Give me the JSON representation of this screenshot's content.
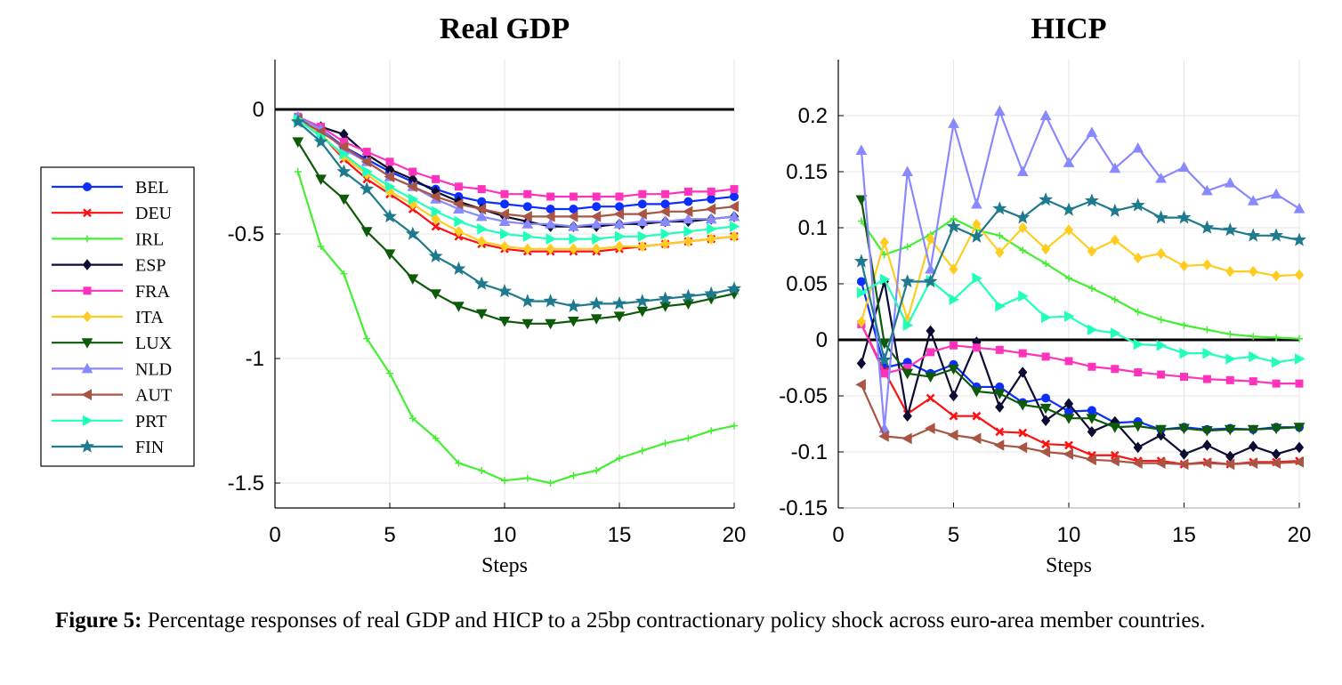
{
  "legend": {
    "countries": [
      "BEL",
      "DEU",
      "IRL",
      "ESP",
      "FRA",
      "ITA",
      "LUX",
      "NLD",
      "AUT",
      "PRT",
      "FIN"
    ],
    "colors": [
      "#0a2fff",
      "#ff1010",
      "#44ee33",
      "#0b0b33",
      "#ff33bb",
      "#ffcc22",
      "#0d5a08",
      "#8888ff",
      "#aa5544",
      "#22ffbb",
      "#1e7a8c"
    ],
    "markers": [
      "circle",
      "cross",
      "plus",
      "diamond",
      "square",
      "diamond",
      "triangle-down",
      "triangle-up",
      "triangle-left",
      "triangle-right",
      "star"
    ]
  },
  "chart_data": [
    {
      "type": "line",
      "title": "Real GDP",
      "xlabel": "Steps",
      "ylabel": "",
      "xlim": [
        0,
        20
      ],
      "ylim": [
        -1.6,
        0.2
      ],
      "xticks": [
        "0",
        "5",
        "10",
        "15",
        "20"
      ],
      "yticks": [
        "0",
        "-0.5",
        "-1",
        "-1.5"
      ],
      "x": [
        1,
        2,
        3,
        4,
        5,
        6,
        7,
        8,
        9,
        10,
        11,
        12,
        13,
        14,
        15,
        16,
        17,
        18,
        19,
        20
      ],
      "series": [
        {
          "name": "BEL",
          "values": [
            -0.03,
            -0.08,
            -0.15,
            -0.2,
            -0.25,
            -0.29,
            -0.32,
            -0.35,
            -0.37,
            -0.38,
            -0.39,
            -0.4,
            -0.4,
            -0.39,
            -0.39,
            -0.38,
            -0.38,
            -0.37,
            -0.36,
            -0.35
          ]
        },
        {
          "name": "DEU",
          "values": [
            -0.04,
            -0.1,
            -0.2,
            -0.28,
            -0.34,
            -0.4,
            -0.47,
            -0.51,
            -0.54,
            -0.56,
            -0.57,
            -0.57,
            -0.57,
            -0.57,
            -0.56,
            -0.55,
            -0.54,
            -0.53,
            -0.52,
            -0.51
          ]
        },
        {
          "name": "IRL",
          "values": [
            -0.25,
            -0.55,
            -0.66,
            -0.92,
            -1.06,
            -1.24,
            -1.32,
            -1.42,
            -1.45,
            -1.49,
            -1.48,
            -1.5,
            -1.47,
            -1.45,
            -1.4,
            -1.37,
            -1.34,
            -1.32,
            -1.29,
            -1.27
          ]
        },
        {
          "name": "ESP",
          "values": [
            -0.04,
            -0.07,
            -0.1,
            -0.18,
            -0.24,
            -0.28,
            -0.33,
            -0.37,
            -0.4,
            -0.43,
            -0.45,
            -0.47,
            -0.47,
            -0.47,
            -0.46,
            -0.46,
            -0.45,
            -0.45,
            -0.44,
            -0.43
          ]
        },
        {
          "name": "FRA",
          "values": [
            -0.03,
            -0.07,
            -0.13,
            -0.17,
            -0.21,
            -0.25,
            -0.28,
            -0.31,
            -0.32,
            -0.34,
            -0.34,
            -0.35,
            -0.35,
            -0.35,
            -0.35,
            -0.34,
            -0.34,
            -0.33,
            -0.33,
            -0.32
          ]
        },
        {
          "name": "ITA",
          "values": [
            -0.04,
            -0.1,
            -0.19,
            -0.26,
            -0.33,
            -0.38,
            -0.44,
            -0.49,
            -0.53,
            -0.55,
            -0.56,
            -0.56,
            -0.56,
            -0.56,
            -0.55,
            -0.55,
            -0.54,
            -0.53,
            -0.52,
            -0.51
          ]
        },
        {
          "name": "LUX",
          "values": [
            -0.13,
            -0.28,
            -0.36,
            -0.49,
            -0.58,
            -0.68,
            -0.74,
            -0.79,
            -0.82,
            -0.85,
            -0.86,
            -0.86,
            -0.85,
            -0.84,
            -0.83,
            -0.81,
            -0.79,
            -0.78,
            -0.76,
            -0.74
          ]
        },
        {
          "name": "NLD",
          "values": [
            -0.03,
            -0.08,
            -0.16,
            -0.21,
            -0.27,
            -0.31,
            -0.36,
            -0.4,
            -0.43,
            -0.45,
            -0.46,
            -0.46,
            -0.47,
            -0.46,
            -0.46,
            -0.45,
            -0.45,
            -0.44,
            -0.44,
            -0.43
          ]
        },
        {
          "name": "AUT",
          "values": [
            -0.04,
            -0.09,
            -0.15,
            -0.21,
            -0.27,
            -0.31,
            -0.35,
            -0.38,
            -0.4,
            -0.42,
            -0.43,
            -0.43,
            -0.43,
            -0.43,
            -0.42,
            -0.42,
            -0.41,
            -0.41,
            -0.4,
            -0.39
          ]
        },
        {
          "name": "PRT",
          "values": [
            -0.04,
            -0.11,
            -0.18,
            -0.25,
            -0.31,
            -0.36,
            -0.41,
            -0.45,
            -0.48,
            -0.5,
            -0.51,
            -0.52,
            -0.52,
            -0.52,
            -0.51,
            -0.51,
            -0.5,
            -0.49,
            -0.48,
            -0.47
          ]
        },
        {
          "name": "FIN",
          "values": [
            -0.05,
            -0.13,
            -0.25,
            -0.32,
            -0.43,
            -0.5,
            -0.59,
            -0.64,
            -0.7,
            -0.73,
            -0.77,
            -0.77,
            -0.79,
            -0.78,
            -0.78,
            -0.77,
            -0.76,
            -0.75,
            -0.74,
            -0.72
          ]
        }
      ]
    },
    {
      "type": "line",
      "title": "HICP",
      "xlabel": "Steps",
      "ylabel": "",
      "xlim": [
        0,
        20
      ],
      "ylim": [
        -0.15,
        0.25
      ],
      "xticks": [
        "0",
        "5",
        "10",
        "15",
        "20"
      ],
      "yticks": [
        "0.2",
        "0.15",
        "0.1",
        "0.05",
        "0",
        "-0.05",
        "-0.1",
        "-0.15"
      ],
      "x": [
        1,
        2,
        3,
        4,
        5,
        6,
        7,
        8,
        9,
        10,
        11,
        12,
        13,
        14,
        15,
        16,
        17,
        18,
        19,
        20
      ],
      "series": [
        {
          "name": "BEL",
          "values": [
            0.052,
            -0.025,
            -0.02,
            -0.03,
            -0.022,
            -0.042,
            -0.042,
            -0.056,
            -0.052,
            -0.064,
            -0.063,
            -0.074,
            -0.073,
            -0.08,
            -0.078,
            -0.08,
            -0.079,
            -0.08,
            -0.078,
            -0.078
          ]
        },
        {
          "name": "DEU",
          "values": [
            0.014,
            -0.028,
            -0.066,
            -0.052,
            -0.068,
            -0.068,
            -0.082,
            -0.083,
            -0.093,
            -0.094,
            -0.103,
            -0.103,
            -0.108,
            -0.108,
            -0.111,
            -0.109,
            -0.111,
            -0.109,
            -0.109,
            -0.108
          ]
        },
        {
          "name": "IRL",
          "values": [
            0.106,
            0.076,
            0.083,
            0.094,
            0.108,
            0.098,
            0.093,
            0.08,
            0.068,
            0.055,
            0.046,
            0.036,
            0.025,
            0.018,
            0.013,
            0.009,
            0.005,
            0.003,
            0.002,
            0.001
          ]
        },
        {
          "name": "ESP",
          "values": [
            -0.021,
            0.052,
            -0.068,
            0.008,
            -0.05,
            -0.002,
            -0.06,
            -0.029,
            -0.072,
            -0.057,
            -0.082,
            -0.073,
            -0.096,
            -0.085,
            -0.102,
            -0.094,
            -0.104,
            -0.095,
            -0.102,
            -0.096
          ]
        },
        {
          "name": "FRA",
          "values": [
            0.014,
            -0.03,
            -0.025,
            -0.011,
            -0.005,
            -0.007,
            -0.009,
            -0.012,
            -0.015,
            -0.019,
            -0.024,
            -0.026,
            -0.029,
            -0.031,
            -0.033,
            -0.035,
            -0.036,
            -0.037,
            -0.039,
            -0.039
          ]
        },
        {
          "name": "ITA",
          "values": [
            0.016,
            0.087,
            0.018,
            0.09,
            0.063,
            0.103,
            0.078,
            0.1,
            0.081,
            0.098,
            0.079,
            0.089,
            0.073,
            0.077,
            0.066,
            0.067,
            0.061,
            0.061,
            0.057,
            0.058
          ]
        },
        {
          "name": "LUX",
          "values": [
            0.125,
            -0.003,
            -0.03,
            -0.033,
            -0.026,
            -0.046,
            -0.048,
            -0.058,
            -0.061,
            -0.07,
            -0.07,
            -0.078,
            -0.077,
            -0.08,
            -0.079,
            -0.081,
            -0.08,
            -0.08,
            -0.079,
            -0.078
          ]
        },
        {
          "name": "NLD",
          "values": [
            0.169,
            -0.079,
            0.15,
            0.063,
            0.193,
            0.121,
            0.204,
            0.15,
            0.2,
            0.158,
            0.185,
            0.153,
            0.171,
            0.144,
            0.154,
            0.133,
            0.14,
            0.124,
            0.13,
            0.117
          ]
        },
        {
          "name": "AUT",
          "values": [
            -0.04,
            -0.086,
            -0.088,
            -0.079,
            -0.085,
            -0.088,
            -0.094,
            -0.096,
            -0.1,
            -0.102,
            -0.107,
            -0.108,
            -0.11,
            -0.11,
            -0.111,
            -0.11,
            -0.111,
            -0.11,
            -0.11,
            -0.109
          ]
        },
        {
          "name": "PRT",
          "values": [
            0.042,
            0.054,
            0.013,
            0.053,
            0.036,
            0.055,
            0.03,
            0.039,
            0.02,
            0.021,
            0.009,
            0.006,
            -0.004,
            -0.005,
            -0.012,
            -0.012,
            -0.017,
            -0.015,
            -0.02,
            -0.017
          ]
        },
        {
          "name": "FIN",
          "values": [
            0.07,
            -0.018,
            0.052,
            0.052,
            0.101,
            0.092,
            0.117,
            0.109,
            0.125,
            0.116,
            0.124,
            0.115,
            0.12,
            0.109,
            0.109,
            0.1,
            0.098,
            0.093,
            0.093,
            0.089
          ]
        }
      ]
    }
  ],
  "caption": {
    "label": "Figure 5:",
    "text": "Percentage responses of real GDP and HICP to a 25bp contractionary policy shock across euro-area member countries."
  }
}
